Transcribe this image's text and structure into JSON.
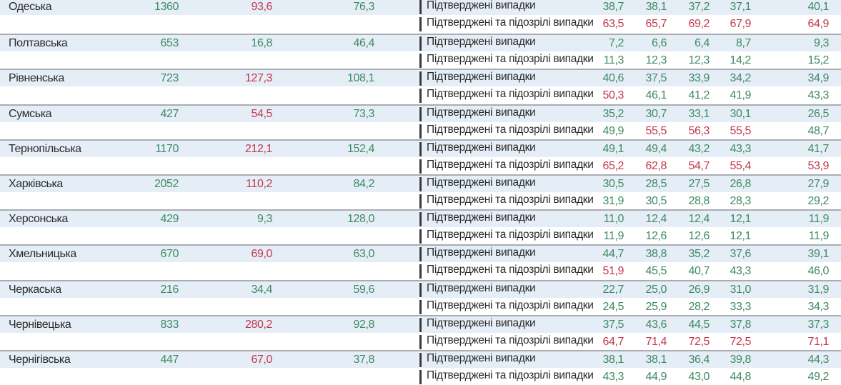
{
  "colors": {
    "green": "#3f8a62",
    "red": "#c4374f",
    "band": "#e5eef7"
  },
  "red_threshold": 50,
  "row_labels": {
    "confirmed": "Підтверджені випадки",
    "confirmed_suspected": "Підтверджені та підозрілі випадки"
  },
  "regions": [
    {
      "name": "Одеська",
      "population": "1360",
      "col2": "93,6",
      "col3": "76,3",
      "confirmed": [
        "38,7",
        "38,1",
        "37,2",
        "37,1",
        "40,1"
      ],
      "confirmed_suspected": [
        "63,5",
        "65,7",
        "69,2",
        "67,9",
        "64,9"
      ]
    },
    {
      "name": "Полтавська",
      "population": "653",
      "col2": "16,8",
      "col3": "46,4",
      "confirmed": [
        "7,2",
        "6,6",
        "6,4",
        "8,7",
        "9,3"
      ],
      "confirmed_suspected": [
        "11,3",
        "12,3",
        "12,3",
        "14,2",
        "15,2"
      ]
    },
    {
      "name": "Рівненська",
      "population": "723",
      "col2": "127,3",
      "col3": "108,1",
      "confirmed": [
        "40,6",
        "37,5",
        "33,9",
        "34,2",
        "34,9"
      ],
      "confirmed_suspected": [
        "50,3",
        "46,1",
        "41,2",
        "41,9",
        "43,3"
      ]
    },
    {
      "name": "Сумська",
      "population": "427",
      "col2": "54,5",
      "col3": "73,3",
      "confirmed": [
        "35,2",
        "30,7",
        "33,1",
        "30,1",
        "26,5"
      ],
      "confirmed_suspected": [
        "49,9",
        "55,5",
        "56,3",
        "55,5",
        "48,7"
      ]
    },
    {
      "name": "Тернопільська",
      "population": "1170",
      "col2": "212,1",
      "col3": "152,4",
      "confirmed": [
        "49,1",
        "49,4",
        "43,2",
        "43,3",
        "41,7"
      ],
      "confirmed_suspected": [
        "65,2",
        "62,8",
        "54,7",
        "55,4",
        "53,9"
      ]
    },
    {
      "name": "Харківська",
      "population": "2052",
      "col2": "110,2",
      "col3": "84,2",
      "confirmed": [
        "30,5",
        "28,5",
        "27,5",
        "26,8",
        "27,9"
      ],
      "confirmed_suspected": [
        "31,9",
        "30,5",
        "28,8",
        "28,3",
        "29,2"
      ]
    },
    {
      "name": "Херсонська",
      "population": "429",
      "col2": "9,3",
      "col3": "128,0",
      "confirmed": [
        "11,0",
        "12,4",
        "12,4",
        "12,1",
        "11,9"
      ],
      "confirmed_suspected": [
        "11,9",
        "12,6",
        "12,6",
        "12,1",
        "11,9"
      ]
    },
    {
      "name": "Хмельницька",
      "population": "670",
      "col2": "69,0",
      "col3": "63,0",
      "confirmed": [
        "44,7",
        "38,8",
        "35,2",
        "37,6",
        "39,1"
      ],
      "confirmed_suspected": [
        "51,9",
        "45,5",
        "40,7",
        "43,3",
        "46,0"
      ]
    },
    {
      "name": "Черкаська",
      "population": "216",
      "col2": "34,4",
      "col3": "59,6",
      "confirmed": [
        "22,7",
        "25,0",
        "26,9",
        "31,0",
        "31,9"
      ],
      "confirmed_suspected": [
        "24,5",
        "25,9",
        "28,2",
        "33,3",
        "34,3"
      ]
    },
    {
      "name": "Чернівецька",
      "population": "833",
      "col2": "280,2",
      "col3": "92,8",
      "confirmed": [
        "37,5",
        "43,6",
        "44,5",
        "37,8",
        "37,3"
      ],
      "confirmed_suspected": [
        "64,7",
        "71,4",
        "72,5",
        "72,5",
        "71,1"
      ]
    },
    {
      "name": "Чернігівська",
      "population": "447",
      "col2": "67,0",
      "col3": "37,8",
      "confirmed": [
        "38,1",
        "38,1",
        "36,4",
        "39,8",
        "44,3"
      ],
      "confirmed_suspected": [
        "43,3",
        "44,9",
        "43,0",
        "44,8",
        "49,2"
      ]
    }
  ]
}
